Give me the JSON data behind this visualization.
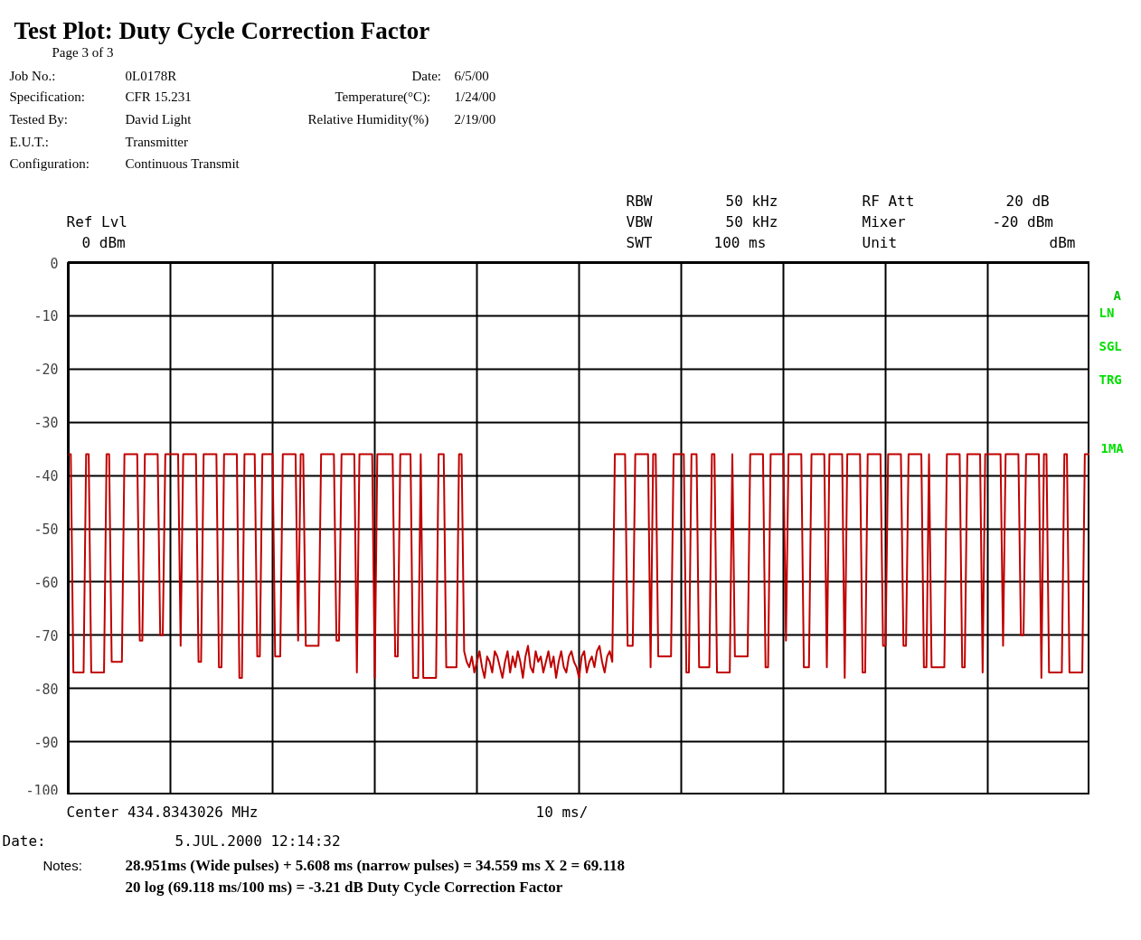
{
  "chart_data": {
    "type": "line",
    "title": "Test Plot: Duty Cycle Correction Factor",
    "annotations": [
      "Page  3  of  3",
      "Job No.:",
      "0L0178R",
      "Date:",
      "6/5/00",
      "Specification:",
      "CFR 15.231",
      "Temperature(°C):",
      "1/24/00",
      "Tested By:",
      "David Light",
      "Relative Humidity(%)",
      "2/19/00",
      "E.U.T.:",
      "Transmitter",
      "Configuration:",
      "Continuous Transmit",
      "Ref Lvl",
      "0 dBm",
      "RBW",
      "50 kHz",
      "VBW",
      "50 kHz",
      "SWT",
      "100 ms",
      "RF Att",
      "20 dB",
      "Mixer",
      "-20 dBm",
      "Unit",
      "dBm",
      "A",
      "LN",
      "SGL",
      "TRG",
      "1MA",
      "Center 434.8343026 MHz",
      "10 ms/",
      "Date:",
      "5.JUL.2000   12:14:32",
      "Notes:",
      "28.951ms (Wide pulses) + 5.608 ms (narrow pulses) = 34.559 ms X 2 = 69.118",
      "20 log (69.118 ms/100 ms) = -3.21 dB Duty Cycle Correction Factor"
    ],
    "categories": [
      null,
      null,
      null,
      null,
      null,
      null,
      null,
      null,
      null,
      null,
      null,
      null,
      null,
      null,
      null,
      null,
      null,
      null,
      null,
      null,
      null,
      null,
      null,
      null,
      null,
      null,
      null,
      null,
      null,
      null,
      null,
      null,
      null,
      null,
      null,
      null,
      null,
      null,
      null,
      null,
      null,
      null,
      null,
      null,
      null,
      null,
      null,
      null,
      null,
      null,
      null,
      null,
      null,
      null,
      null,
      null,
      null,
      null,
      null,
      null,
      null,
      null,
      null,
      null,
      null,
      null,
      null,
      null,
      null,
      null,
      null,
      null,
      null,
      null,
      null,
      null,
      null,
      null,
      null,
      null,
      null,
      null,
      null,
      null,
      null,
      null,
      null,
      null,
      null,
      null,
      null,
      null,
      null,
      null,
      null,
      null,
      null,
      null,
      null,
      null,
      null,
      null,
      null,
      null,
      null,
      null,
      null,
      null,
      null,
      null,
      null,
      null,
      null,
      null,
      null,
      null,
      null,
      null,
      null,
      null,
      null,
      null,
      null,
      null,
      null,
      null,
      null,
      null,
      null,
      null,
      null,
      null,
      null,
      null,
      null,
      null,
      null,
      null,
      null,
      null,
      null,
      null,
      null,
      null,
      null,
      null,
      null,
      null,
      null,
      null,
      null,
      null,
      null,
      null,
      null,
      null,
      null,
      null,
      null,
      null,
      null,
      null,
      null,
      null,
      null,
      null,
      null,
      null,
      null,
      null,
      null,
      null,
      null,
      null,
      null,
      null,
      null,
      null,
      null,
      null,
      null,
      null,
      null,
      null,
      null,
      null,
      null,
      null,
      null,
      null,
      null,
      null,
      null,
      null,
      null,
      null,
      null,
      null,
      null,
      null,
      null,
      null,
      null,
      null,
      null,
      null,
      null,
      null,
      null,
      null,
      null,
      null,
      null,
      null,
      null,
      null,
      null,
      null,
      null,
      null,
      null,
      null,
      null,
      null,
      null,
      null,
      null,
      null,
      null,
      null,
      null,
      null,
      null,
      null,
      null,
      null,
      null,
      null,
      null,
      null,
      null,
      null,
      null,
      null,
      null,
      null,
      null,
      null,
      null,
      null,
      null,
      null,
      null,
      null,
      null,
      null,
      null,
      null,
      null,
      null,
      null,
      null,
      null,
      null,
      null,
      null,
      null,
      null,
      null,
      null,
      null,
      null,
      null,
      null,
      null,
      null,
      null,
      null,
      null,
      null,
      null,
      null,
      null,
      null,
      null,
      null,
      null,
      null,
      null,
      null,
      null,
      null,
      null,
      null,
      null,
      null,
      null,
      null,
      null,
      null,
      null,
      null,
      null,
      null,
      null,
      null,
      null,
      null,
      null,
      null,
      null,
      null,
      null,
      null,
      null,
      null,
      null,
      null,
      null,
      null,
      null,
      null,
      null,
      null,
      null,
      null,
      null,
      null,
      null,
      null,
      null,
      null,
      null,
      null,
      null,
      null,
      null,
      null,
      null,
      null,
      null,
      null,
      null,
      null,
      null,
      null,
      null,
      null,
      null,
      null,
      null,
      null,
      null,
      null,
      null,
      null,
      null,
      null,
      null,
      null,
      null,
      null,
      null,
      null,
      null,
      null,
      null,
      null,
      null,
      null,
      null,
      null,
      null,
      null,
      null,
      null,
      null,
      null,
      null,
      null,
      null,
      null,
      null,
      null,
      null,
      null,
      null,
      null,
      null,
      null,
      null,
      null,
      null,
      null,
      null,
      null,
      null,
      null,
      null,
      null,
      null
    ],
    "ylim": [
      -100,
      0
    ],
    "yticks": [
      0,
      -10,
      -20,
      -30,
      -40,
      -50,
      -60,
      -70,
      -80,
      -90,
      -100
    ],
    "tick_labels": "y",
    "grid": true,
    "marker": "none",
    "line_style": "solid",
    "series": [
      {
        "color": "#c00000",
        "values": [
          -36,
          -36,
          -77,
          -77,
          -77,
          -77,
          -77,
          -36,
          -36,
          -77,
          -77,
          -77,
          -77,
          -77,
          -77,
          -36,
          -36,
          -75,
          -75,
          -75,
          -75,
          -75,
          -36,
          -36,
          -36,
          -36,
          -36,
          -36,
          -71,
          -71,
          -36,
          -36,
          -36,
          -36,
          -36,
          -36,
          -70,
          -70,
          -36,
          -36,
          -36,
          -36,
          -36,
          -36,
          -72,
          -36,
          -36,
          -36,
          -36,
          -36,
          -36,
          -75,
          -75,
          -36,
          -36,
          -36,
          -36,
          -36,
          -36,
          -76,
          -76,
          -36,
          -36,
          -36,
          -36,
          -36,
          -36,
          -78,
          -78,
          -36,
          -36,
          -36,
          -36,
          -36,
          -74,
          -74,
          -36,
          -36,
          -36,
          -36,
          -36,
          -74,
          -74,
          -74,
          -36,
          -36,
          -36,
          -36,
          -36,
          -36,
          -71,
          -36,
          -36,
          -72,
          -72,
          -72,
          -72,
          -72,
          -72,
          -36,
          -36,
          -36,
          -36,
          -36,
          -36,
          -71,
          -71,
          -36,
          -36,
          -36,
          -36,
          -36,
          -36,
          -77,
          -36,
          -36,
          -36,
          -36,
          -36,
          -36,
          -78,
          -36,
          -36,
          -36,
          -36,
          -36,
          -36,
          -36,
          -74,
          -74,
          -36,
          -36,
          -36,
          -36,
          -36,
          -78,
          -78,
          -78,
          -36,
          -78,
          -78,
          -78,
          -78,
          -78,
          -78,
          -36,
          -36,
          -36,
          -76,
          -76,
          -76,
          -76,
          -76,
          -36,
          -36,
          -73,
          -75,
          -76,
          -74,
          -77,
          -75,
          -73,
          -76,
          -78,
          -74,
          -75,
          -77,
          -73,
          -74,
          -76,
          -78,
          -75,
          -73,
          -77,
          -74,
          -76,
          -73,
          -75,
          -78,
          -74,
          -72,
          -76,
          -77,
          -73,
          -75,
          -74,
          -77,
          -75,
          -73,
          -76,
          -74,
          -78,
          -75,
          -73,
          -76,
          -77,
          -74,
          -73,
          -75,
          -76,
          -78,
          -74,
          -73,
          -77,
          -75,
          -74,
          -76,
          -73,
          -72,
          -75,
          -77,
          -74,
          -73,
          -75,
          -36,
          -36,
          -36,
          -36,
          -36,
          -72,
          -72,
          -72,
          -36,
          -36,
          -36,
          -36,
          -36,
          -36,
          -76,
          -36,
          -36,
          -74,
          -74,
          -74,
          -74,
          -74,
          -74,
          -36,
          -36,
          -36,
          -36,
          -36,
          -77,
          -77,
          -36,
          -36,
          -36,
          -76,
          -76,
          -76,
          -76,
          -76,
          -36,
          -36,
          -77,
          -77,
          -77,
          -77,
          -77,
          -77,
          -36,
          -74,
          -74,
          -74,
          -74,
          -74,
          -74,
          -36,
          -36,
          -36,
          -36,
          -36,
          -36,
          -76,
          -76,
          -36,
          -36,
          -36,
          -36,
          -36,
          -36,
          -71,
          -36,
          -36,
          -36,
          -36,
          -36,
          -36,
          -76,
          -76,
          -76,
          -36,
          -36,
          -36,
          -36,
          -36,
          -36,
          -76,
          -36,
          -36,
          -36,
          -36,
          -36,
          -36,
          -78,
          -36,
          -36,
          -36,
          -36,
          -36,
          -36,
          -77,
          -77,
          -36,
          -36,
          -36,
          -36,
          -36,
          -36,
          -72,
          -72,
          -36,
          -36,
          -36,
          -36,
          -36,
          -36,
          -72,
          -72,
          -36,
          -36,
          -36,
          -36,
          -36,
          -36,
          -76,
          -76,
          -36,
          -76,
          -76,
          -76,
          -76,
          -76,
          -76,
          -36,
          -36,
          -36,
          -36,
          -36,
          -36,
          -76,
          -76,
          -36,
          -36,
          -36,
          -36,
          -36,
          -36,
          -77,
          -36,
          -36,
          -36,
          -36,
          -36,
          -36,
          -36,
          -72,
          -36,
          -36,
          -36,
          -36,
          -36,
          -36,
          -70,
          -70,
          -36,
          -36,
          -36,
          -36,
          -36,
          -36,
          -78,
          -36,
          -36,
          -77,
          -77,
          -77,
          -77,
          -77,
          -77,
          -36,
          -36,
          -77,
          -77,
          -77,
          -77,
          -77,
          -77,
          -36,
          -36,
          -36
        ]
      }
    ]
  }
}
